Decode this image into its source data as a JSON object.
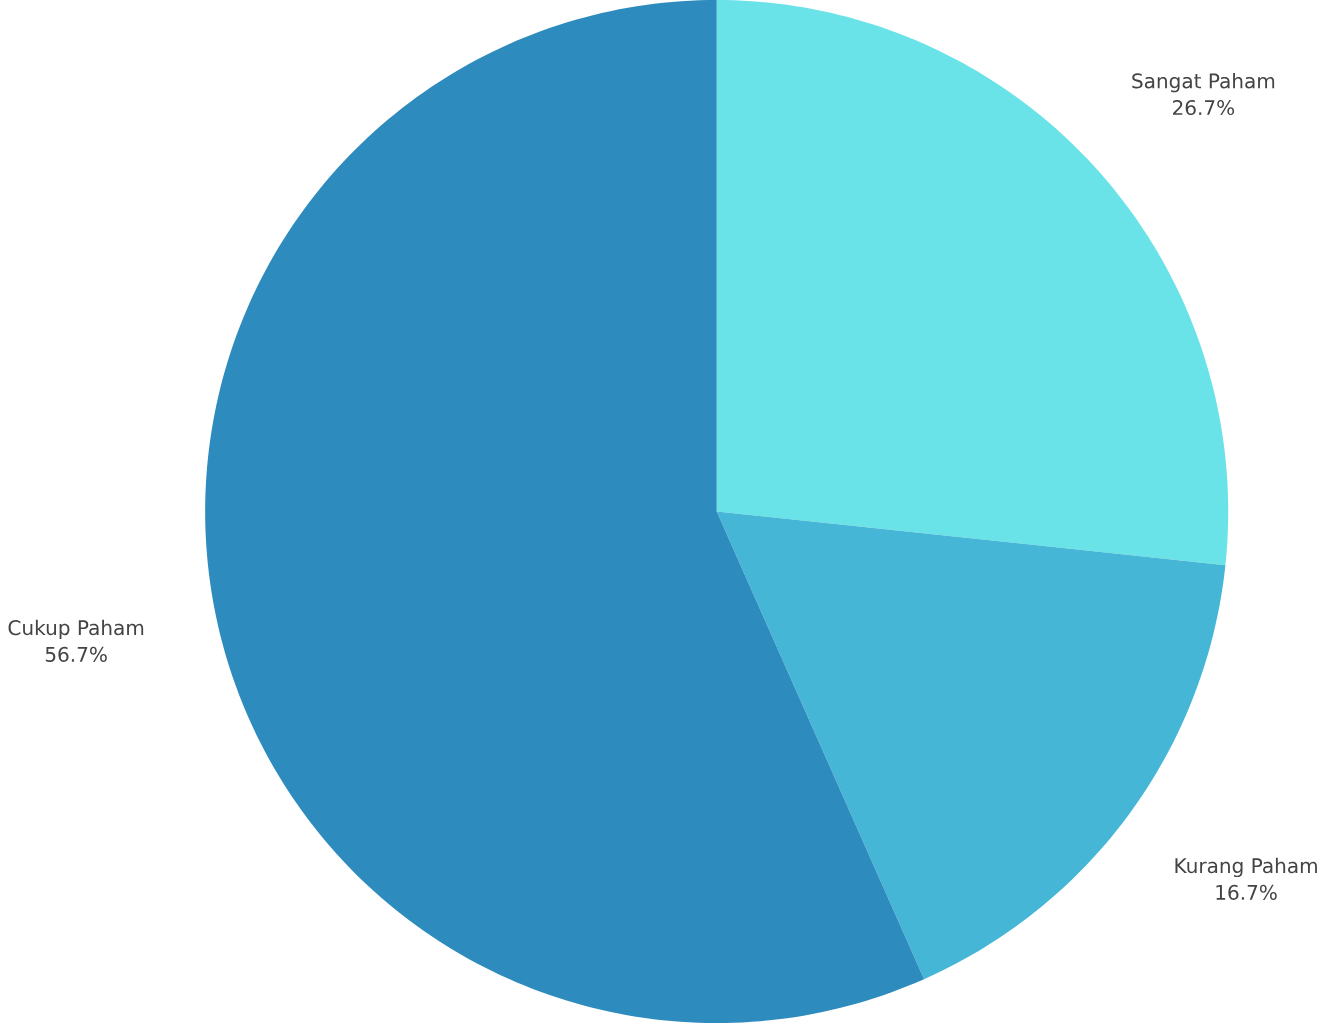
{
  "chart_data": {
    "type": "pie",
    "categories": [
      "Sangat Paham",
      "Kurang Paham",
      "Cukup Paham"
    ],
    "values": [
      26.7,
      16.7,
      56.7
    ],
    "value_labels": [
      "26.7%",
      "16.7%",
      "56.7%"
    ],
    "colors": [
      "#6ae3e8",
      "#45b6d6",
      "#2e8bbd"
    ]
  }
}
